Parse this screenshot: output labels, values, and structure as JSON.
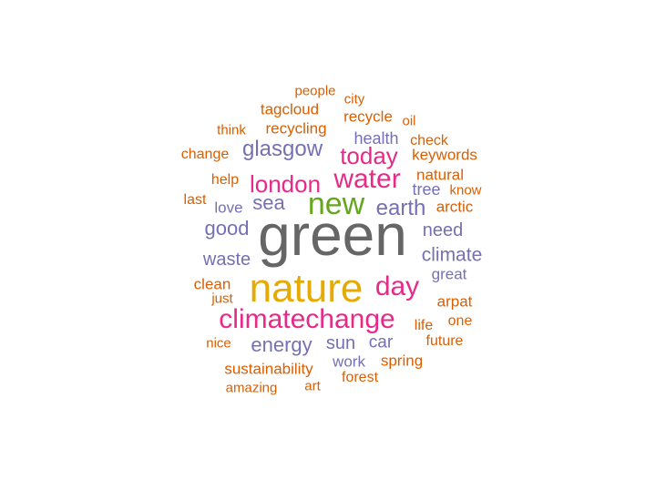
{
  "palette": {
    "grey": "#666666",
    "gold": "#e6ab02",
    "green": "#66a61e",
    "magenta": "#e7298a",
    "purple": "#7570b3",
    "orange": "#d95f02"
  },
  "words": [
    {
      "text": "green",
      "color": "grey"
    },
    {
      "text": "nature",
      "color": "gold"
    },
    {
      "text": "new",
      "color": "green"
    },
    {
      "text": "water",
      "color": "magenta"
    },
    {
      "text": "climatechange",
      "color": "magenta"
    },
    {
      "text": "day",
      "color": "magenta"
    },
    {
      "text": "london",
      "color": "magenta"
    },
    {
      "text": "today",
      "color": "magenta"
    },
    {
      "text": "glasgow",
      "color": "purple"
    },
    {
      "text": "earth",
      "color": "purple"
    },
    {
      "text": "sea",
      "color": "purple"
    },
    {
      "text": "good",
      "color": "purple"
    },
    {
      "text": "energy",
      "color": "purple"
    },
    {
      "text": "climate",
      "color": "purple"
    },
    {
      "text": "need",
      "color": "purple"
    },
    {
      "text": "waste",
      "color": "purple"
    },
    {
      "text": "sun",
      "color": "purple"
    },
    {
      "text": "car",
      "color": "purple"
    },
    {
      "text": "health",
      "color": "purple"
    },
    {
      "text": "tree",
      "color": "purple"
    },
    {
      "text": "love",
      "color": "purple"
    },
    {
      "text": "great",
      "color": "purple"
    },
    {
      "text": "work",
      "color": "purple"
    },
    {
      "text": "sustainability",
      "color": "orange"
    },
    {
      "text": "recycling",
      "color": "orange"
    },
    {
      "text": "tagcloud",
      "color": "orange"
    },
    {
      "text": "recycle",
      "color": "orange"
    },
    {
      "text": "keywords",
      "color": "orange"
    },
    {
      "text": "natural",
      "color": "orange"
    },
    {
      "text": "arctic",
      "color": "orange"
    },
    {
      "text": "arpat",
      "color": "orange"
    },
    {
      "text": "clean",
      "color": "orange"
    },
    {
      "text": "spring",
      "color": "orange"
    },
    {
      "text": "change",
      "color": "orange"
    },
    {
      "text": "check",
      "color": "orange"
    },
    {
      "text": "help",
      "color": "orange"
    },
    {
      "text": "last",
      "color": "orange"
    },
    {
      "text": "life",
      "color": "orange"
    },
    {
      "text": "future",
      "color": "orange"
    },
    {
      "text": "forest",
      "color": "orange"
    },
    {
      "text": "one",
      "color": "orange"
    },
    {
      "text": "city",
      "color": "orange"
    },
    {
      "text": "people",
      "color": "orange"
    },
    {
      "text": "think",
      "color": "orange"
    },
    {
      "text": "oil",
      "color": "orange"
    },
    {
      "text": "know",
      "color": "orange"
    },
    {
      "text": "just",
      "color": "orange"
    },
    {
      "text": "nice",
      "color": "orange"
    },
    {
      "text": "amazing",
      "color": "orange"
    },
    {
      "text": "art",
      "color": "orange"
    }
  ]
}
